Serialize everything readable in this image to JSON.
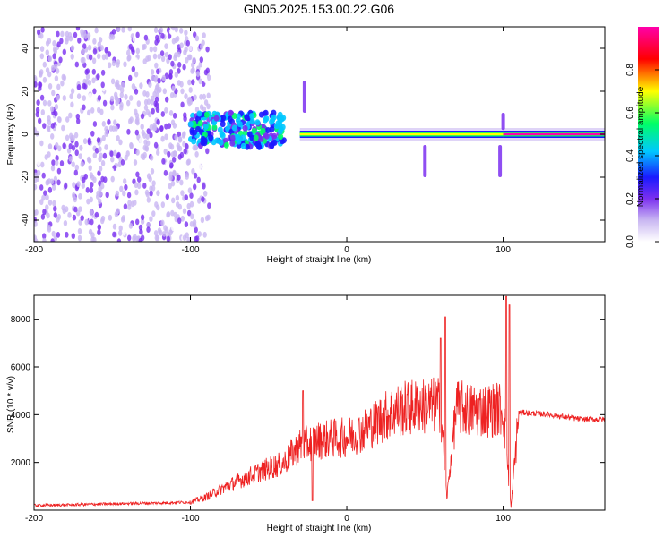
{
  "title": "GN05.2025.153.00.22.G06",
  "chart_data": [
    {
      "type": "heatmap",
      "title": "GN05.2025.153.00.22.G06",
      "xlabel": "Height of straight line (km)",
      "ylabel": "Frequency (Hz)",
      "xlim": [
        -200,
        165
      ],
      "ylim": [
        -50,
        50
      ],
      "xticks": [
        -200,
        -100,
        0,
        100
      ],
      "yticks": [
        -40,
        -20,
        0,
        20,
        40
      ],
      "colormap": [
        "#ffffff",
        "#c9b7f2",
        "#7b2ff0",
        "#1a1aff",
        "#00c8ff",
        "#00ff66",
        "#ffff00",
        "#ff0000",
        "#ff00aa"
      ],
      "colorbar": {
        "label": "Normalized spectral amplitude",
        "range": [
          0,
          1
        ],
        "ticks": [
          "0.0",
          "0.2",
          "0.4",
          "0.6",
          "0.8"
        ]
      },
      "regions": [
        {
          "x": [
            -200,
            -100
          ],
          "freq": [
            -50,
            50
          ],
          "amplitude": 0.2
        },
        {
          "x": [
            -100,
            -40
          ],
          "freq": [
            -8,
            12
          ],
          "amplitude": 0.4
        },
        {
          "x": [
            -30,
            100
          ],
          "freq": [
            -3,
            3
          ],
          "amplitude": 0.8
        },
        {
          "x": [
            100,
            165
          ],
          "freq": [
            -1,
            1
          ],
          "amplitude": 0.95
        }
      ],
      "features": [
        {
          "x": -27,
          "freq": [
            10,
            25
          ]
        },
        {
          "x": 50,
          "freq": [
            -20,
            -5
          ]
        },
        {
          "x": 98,
          "freq": [
            -20,
            -5
          ]
        },
        {
          "x": 100,
          "freq": [
            2,
            10
          ]
        }
      ]
    },
    {
      "type": "line",
      "xlabel": "Height of straight line (km)",
      "ylabel": "SNR (10 * v/v)",
      "xlim": [
        -200,
        165
      ],
      "ylim": [
        0,
        9000
      ],
      "xticks": [
        -200,
        -100,
        0,
        100
      ],
      "yticks": [
        2000,
        4000,
        6000,
        8000
      ],
      "color": "#ee2222",
      "x": [
        -200,
        -180,
        -160,
        -140,
        -120,
        -100,
        -90,
        -80,
        -70,
        -60,
        -50,
        -40,
        -30,
        -20,
        -10,
        0,
        10,
        20,
        30,
        40,
        50,
        60,
        64,
        70,
        80,
        90,
        100,
        105,
        110,
        120,
        130,
        140,
        150,
        165
      ],
      "y": [
        200,
        220,
        250,
        280,
        300,
        340,
        550,
        900,
        1200,
        1500,
        1750,
        2000,
        2700,
        2900,
        3000,
        3050,
        3300,
        3750,
        4150,
        4300,
        4350,
        4400,
        500,
        4300,
        4200,
        4200,
        4250,
        100,
        4100,
        4050,
        4000,
        3900,
        3800,
        3800
      ],
      "spikes": [
        {
          "x": -28,
          "y": 5000
        },
        {
          "x": -22,
          "y": 400
        },
        {
          "x": 60,
          "y": 7200
        },
        {
          "x": 63,
          "y": 8100
        },
        {
          "x": 102,
          "y": 8950
        },
        {
          "x": 104,
          "y": 8600
        }
      ]
    }
  ]
}
